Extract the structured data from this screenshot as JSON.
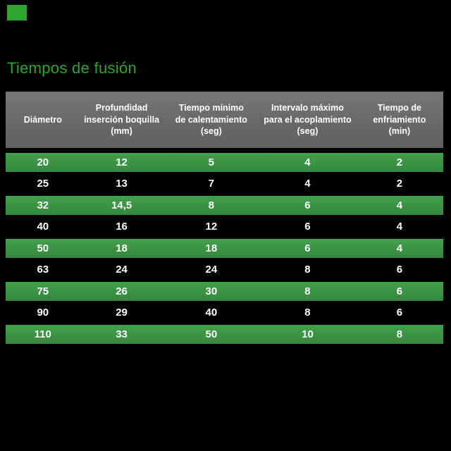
{
  "theme": {
    "background": "#000000",
    "accent_green": "#2fa52f",
    "row_green": "#3b9143",
    "header_gray": "#686868",
    "text_white": "#ffffff"
  },
  "title": "Tiempos de fusión",
  "decor": {
    "corner_square": "green-rectangle"
  },
  "table": {
    "columns": [
      {
        "label": "Diámetro"
      },
      {
        "label": "Profundidad\ninserción boquilla\n(mm)"
      },
      {
        "label": "Tiempo mínimo\nde calentamiento\n(seg)"
      },
      {
        "label": "Intervalo máximo\npara el acoplamiento\n(seg)"
      },
      {
        "label": "Tiempo de\nenfriamiento\n(min)"
      }
    ],
    "rows": [
      {
        "highlighted": true,
        "cells": [
          "20",
          "12",
          "5",
          "4",
          "2"
        ]
      },
      {
        "highlighted": false,
        "cells": [
          "25",
          "13",
          "7",
          "4",
          "2"
        ]
      },
      {
        "highlighted": true,
        "cells": [
          "32",
          "14,5",
          "8",
          "6",
          "4"
        ]
      },
      {
        "highlighted": false,
        "cells": [
          "40",
          "16",
          "12",
          "6",
          "4"
        ]
      },
      {
        "highlighted": true,
        "cells": [
          "50",
          "18",
          "18",
          "6",
          "4"
        ]
      },
      {
        "highlighted": false,
        "cells": [
          "63",
          "24",
          "24",
          "8",
          "6"
        ]
      },
      {
        "highlighted": true,
        "cells": [
          "75",
          "26",
          "30",
          "8",
          "6"
        ]
      },
      {
        "highlighted": false,
        "cells": [
          "90",
          "29",
          "40",
          "8",
          "6"
        ]
      },
      {
        "highlighted": true,
        "cells": [
          "110",
          "33",
          "50",
          "10",
          "8"
        ]
      }
    ]
  },
  "chart_data": {
    "type": "table",
    "title": "Tiempos de fusión",
    "columns": [
      "Diámetro",
      "Profundidad inserción boquilla (mm)",
      "Tiempo mínimo de calentamiento (seg)",
      "Intervalo máximo para el acoplamiento (seg)",
      "Tiempo de enfriamiento (min)"
    ],
    "rows": [
      [
        20,
        12,
        5,
        4,
        2
      ],
      [
        25,
        13,
        7,
        4,
        2
      ],
      [
        32,
        14.5,
        8,
        6,
        4
      ],
      [
        40,
        16,
        12,
        6,
        4
      ],
      [
        50,
        18,
        18,
        6,
        4
      ],
      [
        63,
        24,
        24,
        8,
        6
      ],
      [
        75,
        26,
        30,
        8,
        6
      ],
      [
        90,
        29,
        40,
        8,
        6
      ],
      [
        110,
        33,
        50,
        10,
        8
      ]
    ],
    "highlighted_rows": [
      0,
      2,
      4,
      6,
      8
    ],
    "layout": {
      "header_background": "gray",
      "highlight_color": "green",
      "page_background": "black"
    }
  }
}
